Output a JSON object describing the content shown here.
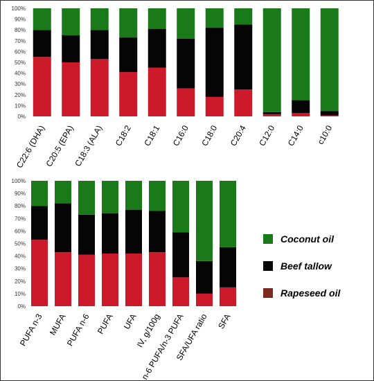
{
  "chart_data": [
    {
      "type": "bar",
      "stacked": true,
      "percent_stacked": true,
      "categories": [
        "C22:6 (DHA)",
        "C20:5 (EPA)",
        "C18:3 (ALA)",
        "C18:2",
        "C18:1",
        "C16:0",
        "C18:0",
        "C20:4",
        "C12:0",
        "C14:0",
        "c10:0"
      ],
      "y_tick_labels": [
        "0%",
        "10%",
        "20%",
        "30%",
        "40%",
        "50%",
        "60%",
        "70%",
        "80%",
        "90%",
        "100%"
      ],
      "ylim": [
        0,
        100
      ],
      "grid": false,
      "series": [
        {
          "name": "Rapeseed oil",
          "color": "#cc1a2a",
          "values": [
            55,
            50,
            53,
            41,
            45,
            26,
            18,
            25,
            2,
            3,
            1
          ]
        },
        {
          "name": "Beef tallow",
          "color": "#050505",
          "values": [
            25,
            25,
            27,
            32,
            36,
            46,
            64,
            60,
            2,
            12,
            4
          ]
        },
        {
          "name": "Coconut oil",
          "color": "#1a7a1a",
          "values": [
            20,
            25,
            20,
            27,
            19,
            28,
            18,
            15,
            96,
            85,
            95
          ]
        }
      ]
    },
    {
      "type": "bar",
      "stacked": true,
      "percent_stacked": true,
      "categories": [
        "PUFA n-3",
        "MUFA",
        "PUFA n-6",
        "PUFA",
        "UFA",
        "IV, g/100g",
        "n-6 PUFA/n-3 PUFA",
        "SFA/UFA ratio",
        "SFA"
      ],
      "y_tick_labels": [
        "0%",
        "10%",
        "20%",
        "30%",
        "40%",
        "50%",
        "60%",
        "70%",
        "80%",
        "90%",
        "100%"
      ],
      "ylim": [
        0,
        100
      ],
      "grid": false,
      "series": [
        {
          "name": "Rapeseed oil",
          "color": "#cc1a2a",
          "values": [
            53,
            43,
            41,
            42,
            42,
            43,
            23,
            10,
            15
          ]
        },
        {
          "name": "Beef tallow",
          "color": "#050505",
          "values": [
            27,
            39,
            32,
            32,
            35,
            33,
            36,
            26,
            32
          ]
        },
        {
          "name": "Coconut oil",
          "color": "#1a7a1a",
          "values": [
            20,
            18,
            27,
            26,
            23,
            24,
            41,
            64,
            53
          ]
        }
      ]
    }
  ],
  "legend": {
    "placement": "right",
    "items": [
      {
        "label": "Coconut oil",
        "color": "#1a7a1a"
      },
      {
        "label": "Beef tallow",
        "color": "#050505"
      },
      {
        "label": "Rapeseed oil",
        "color": "#7a2a1f"
      }
    ]
  }
}
